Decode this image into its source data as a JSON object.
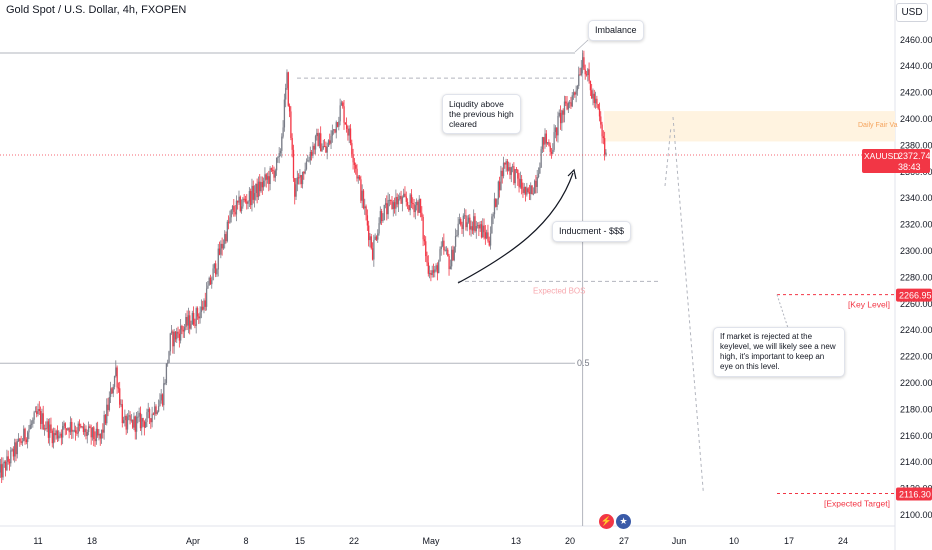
{
  "title": "Gold Spot / U.S. Dollar, 4h, FXOPEN",
  "currency_button": "USD",
  "annotations": {
    "imbalance": "Imbalance",
    "liquidity": [
      "Liqudity above",
      "the previous high",
      "cleared"
    ],
    "inducement": "Inducment - $$$",
    "expected_bos": "Expected BOS",
    "fib_half": "0.5",
    "daily_fair_value": "Daily Fair Va",
    "key_level": "[Key Level]",
    "expected_target": "[Expected Target]",
    "rejection_note": [
      "If market is rejected at the",
      "keylevel, we will likely see a new",
      "high, it's important to keep an",
      "eye on this level."
    ]
  },
  "price_tags": {
    "current_symbol": "XAUUSD",
    "current_price": "2372.74",
    "countdown": "38:43",
    "key_level": "2266.95",
    "target": "2116.30"
  },
  "icons": [
    "flash-icon",
    "us-flag-icon"
  ],
  "colors": {
    "up": "#787b86",
    "down": "#f23645",
    "zone": "#fff3e0",
    "label_red": "#f23645"
  },
  "chart_data": {
    "type": "candlestick",
    "title": "Gold Spot / U.S. Dollar, 4h, FXOPEN",
    "ylim": [
      2090,
      2475
    ],
    "y_ticks": [
      2100,
      2120,
      2140,
      2160,
      2180,
      2200,
      2220,
      2240,
      2260,
      2280,
      2300,
      2320,
      2340,
      2360,
      2380,
      2400,
      2420,
      2440,
      2460
    ],
    "x_tick_labels": [
      "11",
      "18",
      "Apr",
      "8",
      "15",
      "22",
      "May",
      "13",
      "20",
      "27",
      "Jun",
      "10",
      "17",
      "24"
    ],
    "price_path": [
      [
        "Mar 6",
        2130
      ],
      [
        "Mar 11",
        2176
      ],
      [
        "Mar 13",
        2160
      ],
      [
        "Mar 15",
        2168
      ],
      [
        "Mar 19",
        2157
      ],
      [
        "Mar 20",
        2182
      ],
      [
        "Mar 21",
        2210
      ],
      [
        "Mar 22",
        2168
      ],
      [
        "Mar 25",
        2172
      ],
      [
        "Mar 27",
        2190
      ],
      [
        "Mar 28",
        2232
      ],
      [
        "Apr 1",
        2255
      ],
      [
        "Apr 3",
        2292
      ],
      [
        "Apr 5",
        2330
      ],
      [
        "Apr 8",
        2345
      ],
      [
        "Apr 10",
        2358
      ],
      [
        "Apr 11",
        2368
      ],
      [
        "Apr 12",
        2430
      ],
      [
        "Apr 13",
        2345
      ],
      [
        "Apr 15",
        2375
      ],
      [
        "Apr 16",
        2385
      ],
      [
        "Apr 17",
        2375
      ],
      [
        "Apr 18",
        2392
      ],
      [
        "Apr 19",
        2410
      ],
      [
        "Apr 20",
        2388
      ],
      [
        "Apr 22",
        2330
      ],
      [
        "Apr 23",
        2300
      ],
      [
        "Apr 24",
        2328
      ],
      [
        "Apr 25",
        2332
      ],
      [
        "Apr 26",
        2338
      ],
      [
        "Apr 29",
        2335
      ],
      [
        "Apr 30",
        2290
      ],
      [
        "May 1",
        2282
      ],
      [
        "May 2",
        2302
      ],
      [
        "May 3",
        2290
      ],
      [
        "May 4",
        2320
      ],
      [
        "May 6",
        2322
      ],
      [
        "May 7",
        2315
      ],
      [
        "May 8",
        2310
      ],
      [
        "May 9",
        2345
      ],
      [
        "May 10",
        2368
      ],
      [
        "May 11",
        2360
      ],
      [
        "May 13",
        2340
      ],
      [
        "May 14",
        2355
      ],
      [
        "May 15",
        2385
      ],
      [
        "May 16",
        2378
      ],
      [
        "May 17",
        2400
      ],
      [
        "May 19",
        2420
      ],
      [
        "May 20",
        2448
      ],
      [
        "May 21",
        2422
      ],
      [
        "May 22",
        2405
      ],
      [
        "May 23",
        2370
      ]
    ],
    "levels": {
      "previous_high": 2431,
      "imbalance_high": 2450,
      "expected_bos": 2277,
      "fib_0_5": 2215,
      "key_level": 2266.95,
      "expected_target": 2116.3,
      "current": 2372.74
    },
    "daily_fair_value_zone": [
      2383,
      2406
    ],
    "projected_path": [
      [
        "May 23",
        2400
      ],
      [
        "Jun 4",
        2116
      ]
    ]
  }
}
